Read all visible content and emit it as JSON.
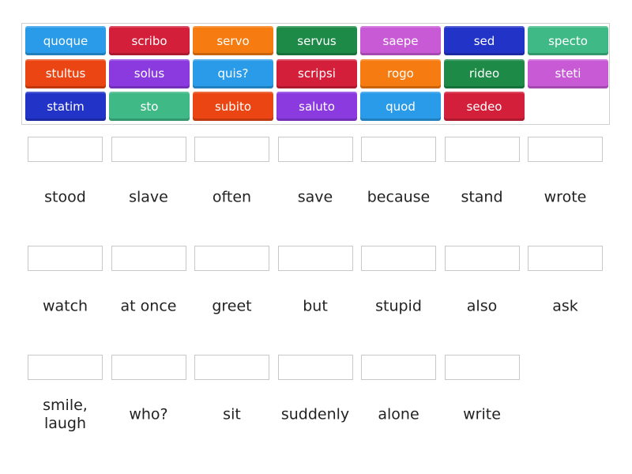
{
  "colors": {
    "blue": "#2a9be8",
    "red": "#d31f3a",
    "orange": "#f67b10",
    "green": "#1d8a48",
    "pink": "#c95ad6",
    "navy": "#2234c8",
    "teal": "#3fba86",
    "redorange": "#ea4512",
    "purple": "#8b3ae0"
  },
  "tiles": [
    {
      "text": "quoque",
      "color": "blue"
    },
    {
      "text": "scribo",
      "color": "red"
    },
    {
      "text": "servo",
      "color": "orange"
    },
    {
      "text": "servus",
      "color": "green"
    },
    {
      "text": "saepe",
      "color": "pink"
    },
    {
      "text": "sed",
      "color": "navy"
    },
    {
      "text": "specto",
      "color": "teal"
    },
    {
      "text": "stultus",
      "color": "redorange"
    },
    {
      "text": "solus",
      "color": "purple"
    },
    {
      "text": "quis?",
      "color": "blue"
    },
    {
      "text": "scripsi",
      "color": "red"
    },
    {
      "text": "rogo",
      "color": "orange"
    },
    {
      "text": "rideo",
      "color": "green"
    },
    {
      "text": "steti",
      "color": "pink"
    },
    {
      "text": "statim",
      "color": "navy"
    },
    {
      "text": "sto",
      "color": "teal"
    },
    {
      "text": "subito",
      "color": "redorange"
    },
    {
      "text": "saluto",
      "color": "purple"
    },
    {
      "text": "quod",
      "color": "blue"
    },
    {
      "text": "sedeo",
      "color": "red"
    }
  ],
  "targets": [
    "stood",
    "slave",
    "often",
    "save",
    "because",
    "stand",
    "wrote",
    "watch",
    "at once",
    "greet",
    "but",
    "stupid",
    "also",
    "ask",
    "smile, laugh",
    "who?",
    "sit",
    "suddenly",
    "alone",
    "write"
  ]
}
